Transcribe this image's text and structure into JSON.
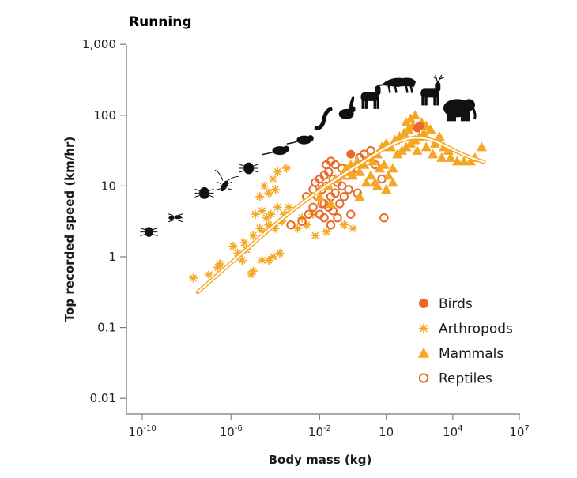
{
  "chart_data": {
    "type": "scatter",
    "title": "Running",
    "xlabel": "Body mass (kg)",
    "ylabel": "Top recorded speed (km/hr)",
    "x_scale": "log",
    "y_scale": "log",
    "xlim_log10": [
      -10.7,
      7
    ],
    "ylim_log10": [
      -2.2,
      3
    ],
    "x_ticks": [
      {
        "log10": -10,
        "base": "10",
        "exp": "-10"
      },
      {
        "log10": -6,
        "base": "10",
        "exp": "-6"
      },
      {
        "log10": -2,
        "base": "10",
        "exp": "-2"
      },
      {
        "log10": 1,
        "base": "10",
        "exp": ""
      },
      {
        "log10": 4,
        "base": "10",
        "exp": "4"
      },
      {
        "log10": 7,
        "base": "10",
        "exp": "7"
      }
    ],
    "y_ticks": [
      {
        "log10": 3,
        "label": "1,000"
      },
      {
        "log10": 2,
        "label": "100"
      },
      {
        "log10": 1,
        "label": "10"
      },
      {
        "log10": 0,
        "label": "1"
      },
      {
        "log10": -1,
        "label": "0.1"
      },
      {
        "log10": -2,
        "label": "0.01"
      }
    ],
    "grid": false,
    "legend_position": "bottom-right",
    "series": [
      {
        "name": "Birds",
        "marker": "filled-circle",
        "color": "#E8692A",
        "points_log10": [
          [
            -0.6,
            1.45
          ],
          [
            2.4,
            1.82
          ],
          [
            2.5,
            1.85
          ]
        ]
      },
      {
        "name": "Arthropods",
        "marker": "asterisk",
        "color": "#F5A623",
        "points_log10": [
          [
            -7.7,
            -0.3
          ],
          [
            -7.0,
            -0.25
          ],
          [
            -6.6,
            -0.15
          ],
          [
            -6.5,
            -0.1
          ],
          [
            -5.7,
            0.05
          ],
          [
            -5.5,
            -0.05
          ],
          [
            -5.3,
            0.1
          ],
          [
            -5.0,
            -0.2
          ],
          [
            -5.1,
            -0.25
          ],
          [
            -4.6,
            -0.05
          ],
          [
            -4.3,
            -0.05
          ],
          [
            -4.1,
            0.0
          ],
          [
            -3.8,
            0.05
          ],
          [
            -5.9,
            0.15
          ],
          [
            -5.4,
            0.2
          ],
          [
            -5.0,
            0.3
          ],
          [
            -4.7,
            0.4
          ],
          [
            -4.5,
            0.35
          ],
          [
            -4.3,
            0.45
          ],
          [
            -4.0,
            0.4
          ],
          [
            -3.7,
            0.5
          ],
          [
            -4.9,
            0.6
          ],
          [
            -4.6,
            0.65
          ],
          [
            -4.4,
            0.55
          ],
          [
            -4.2,
            0.6
          ],
          [
            -3.9,
            0.7
          ],
          [
            -3.6,
            0.6
          ],
          [
            -3.4,
            0.7
          ],
          [
            -4.7,
            0.85
          ],
          [
            -4.3,
            0.9
          ],
          [
            -4.0,
            0.95
          ],
          [
            -4.5,
            1.0
          ],
          [
            -4.1,
            1.1
          ],
          [
            -3.5,
            1.25
          ],
          [
            -3.9,
            1.2
          ],
          [
            -3.0,
            0.4
          ],
          [
            -2.8,
            0.55
          ],
          [
            -2.6,
            0.45
          ],
          [
            -2.3,
            0.6
          ],
          [
            -2.2,
            0.3
          ],
          [
            -1.7,
            0.35
          ],
          [
            -0.9,
            0.45
          ],
          [
            -0.5,
            0.4
          ]
        ]
      },
      {
        "name": "Mammals",
        "marker": "filled-triangle",
        "color": "#F5A623",
        "points_log10": [
          [
            -2.0,
            0.85
          ],
          [
            -1.6,
            1.0
          ],
          [
            -1.3,
            1.1
          ],
          [
            -1.0,
            1.15
          ],
          [
            -0.8,
            1.25
          ],
          [
            -0.6,
            1.3
          ],
          [
            -0.3,
            1.35
          ],
          [
            -0.7,
            1.2
          ],
          [
            -0.5,
            1.15
          ],
          [
            -0.2,
            1.2
          ],
          [
            0.0,
            1.3
          ],
          [
            0.2,
            1.4
          ],
          [
            0.4,
            1.35
          ],
          [
            0.6,
            1.45
          ],
          [
            0.1,
            1.05
          ],
          [
            0.3,
            1.15
          ],
          [
            0.5,
            1.05
          ],
          [
            0.7,
            1.25
          ],
          [
            0.9,
            1.3
          ],
          [
            1.1,
            1.15
          ],
          [
            1.3,
            1.05
          ],
          [
            0.8,
            1.55
          ],
          [
            1.0,
            1.6
          ],
          [
            1.2,
            1.55
          ],
          [
            1.4,
            1.65
          ],
          [
            1.6,
            1.7
          ],
          [
            1.8,
            1.75
          ],
          [
            2.0,
            1.8
          ],
          [
            1.5,
            1.45
          ],
          [
            1.7,
            1.5
          ],
          [
            1.9,
            1.55
          ],
          [
            2.1,
            1.6
          ],
          [
            2.3,
            1.65
          ],
          [
            2.5,
            1.7
          ],
          [
            2.7,
            1.75
          ],
          [
            1.9,
            1.9
          ],
          [
            2.1,
            1.95
          ],
          [
            2.3,
            2.0
          ],
          [
            2.2,
            1.85
          ],
          [
            2.6,
            1.9
          ],
          [
            2.8,
            1.85
          ],
          [
            3.0,
            1.8
          ],
          [
            2.4,
            1.5
          ],
          [
            2.8,
            1.55
          ],
          [
            3.2,
            1.6
          ],
          [
            3.4,
            1.7
          ],
          [
            3.6,
            1.55
          ],
          [
            3.8,
            1.5
          ],
          [
            3.1,
            1.45
          ],
          [
            3.5,
            1.4
          ],
          [
            3.9,
            1.4
          ],
          [
            4.2,
            1.35
          ],
          [
            4.5,
            1.35
          ],
          [
            4.8,
            1.35
          ],
          [
            5.0,
            1.4
          ],
          [
            5.3,
            1.55
          ],
          [
            1.3,
            1.25
          ],
          [
            1.0,
            0.95
          ],
          [
            0.6,
            1.0
          ],
          [
            -1.5,
            0.75
          ],
          [
            -0.2,
            0.85
          ]
        ]
      },
      {
        "name": "Reptiles",
        "marker": "open-circle",
        "color": "#E8692A",
        "points_log10": [
          [
            -3.3,
            0.45
          ],
          [
            -2.8,
            0.5
          ],
          [
            -2.5,
            0.6
          ],
          [
            -2.3,
            0.7
          ],
          [
            -2.0,
            0.6
          ],
          [
            -1.8,
            0.75
          ],
          [
            -2.6,
            0.85
          ],
          [
            -2.3,
            0.95
          ],
          [
            -2.1,
            0.85
          ],
          [
            -1.9,
            0.95
          ],
          [
            -1.7,
            1.0
          ],
          [
            -1.5,
            0.85
          ],
          [
            -1.3,
            0.9
          ],
          [
            -2.2,
            1.05
          ],
          [
            -2.0,
            1.1
          ],
          [
            -1.8,
            1.15
          ],
          [
            -1.6,
            1.2
          ],
          [
            -1.4,
            1.1
          ],
          [
            -1.2,
            1.05
          ],
          [
            -1.0,
            1.0
          ],
          [
            -1.9,
            0.75
          ],
          [
            -1.6,
            0.7
          ],
          [
            -1.4,
            0.65
          ],
          [
            -1.1,
            0.75
          ],
          [
            -0.9,
            0.85
          ],
          [
            -0.7,
            0.95
          ],
          [
            -1.7,
            1.3
          ],
          [
            -1.5,
            1.35
          ],
          [
            -1.3,
            1.3
          ],
          [
            -1.0,
            1.25
          ],
          [
            -0.8,
            1.15
          ],
          [
            -0.6,
            1.2
          ],
          [
            -0.4,
            1.25
          ],
          [
            -0.2,
            1.4
          ],
          [
            0.0,
            1.45
          ],
          [
            0.3,
            1.5
          ],
          [
            0.5,
            1.3
          ],
          [
            0.8,
            1.1
          ],
          [
            -1.8,
            0.55
          ],
          [
            -1.5,
            0.45
          ],
          [
            -1.2,
            0.55
          ],
          [
            0.9,
            0.55
          ],
          [
            -0.6,
            0.6
          ],
          [
            -0.3,
            0.9
          ]
        ]
      }
    ],
    "fit_line_log10": [
      [
        -7.5,
        -0.5
      ],
      [
        -5.5,
        0.05
      ],
      [
        -3.5,
        0.6
      ],
      [
        -1.5,
        1.05
      ],
      [
        0.0,
        1.35
      ],
      [
        1.0,
        1.55
      ],
      [
        1.8,
        1.66
      ],
      [
        2.4,
        1.69
      ],
      [
        3.0,
        1.66
      ],
      [
        3.6,
        1.58
      ],
      [
        4.2,
        1.48
      ],
      [
        4.8,
        1.4
      ],
      [
        5.4,
        1.34
      ]
    ],
    "fit_line_color": "#F5A623",
    "silhouettes": [
      {
        "name": "tick",
        "at_log10": [
          -9.7,
          0.35
        ]
      },
      {
        "name": "ant",
        "at_log10": [
          -8.5,
          0.55
        ]
      },
      {
        "name": "stink-bug",
        "at_log10": [
          -7.2,
          0.9
        ]
      },
      {
        "name": "cockroach",
        "at_log10": [
          -6.3,
          1.0
        ]
      },
      {
        "name": "spider",
        "at_log10": [
          -5.2,
          1.25
        ]
      },
      {
        "name": "mouse",
        "at_log10": [
          -3.8,
          1.5
        ]
      },
      {
        "name": "shrew",
        "at_log10": [
          -2.7,
          1.65
        ]
      },
      {
        "name": "weasel",
        "at_log10": [
          -1.8,
          1.95
        ]
      },
      {
        "name": "rabbit",
        "at_log10": [
          -0.8,
          2.05
        ]
      },
      {
        "name": "goat",
        "at_log10": [
          0.3,
          2.25
        ]
      },
      {
        "name": "cheetah",
        "at_log10": [
          1.6,
          2.45
        ]
      },
      {
        "name": "deer",
        "at_log10": [
          3.0,
          2.3
        ]
      },
      {
        "name": "elephant",
        "at_log10": [
          4.2,
          2.1
        ]
      }
    ]
  },
  "legend": {
    "items": [
      {
        "label": "Birds",
        "marker": "filled-circle",
        "color": "#E8692A"
      },
      {
        "label": "Arthropods",
        "marker": "asterisk",
        "color": "#F5A623"
      },
      {
        "label": "Mammals",
        "marker": "filled-triangle",
        "color": "#F5A623"
      },
      {
        "label": "Reptiles",
        "marker": "open-circle",
        "color": "#E8692A"
      }
    ]
  }
}
